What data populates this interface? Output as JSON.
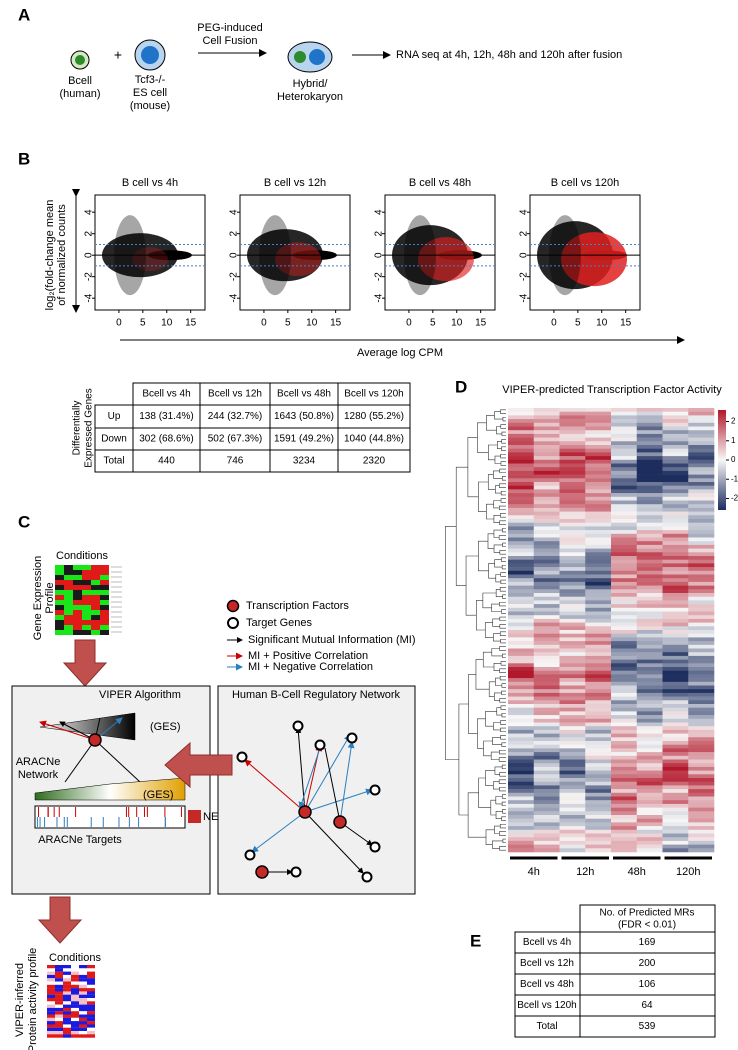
{
  "panel_a": {
    "label": "A",
    "bcell": [
      "Bcell",
      "(human)"
    ],
    "plus": "+",
    "es_cell": [
      "Tcf3-/-",
      "ES cell",
      "(mouse)"
    ],
    "fusion": [
      "PEG-induced",
      "Cell Fusion"
    ],
    "hybrid": [
      "Hybrid/",
      "Heterokaryon"
    ],
    "rna_seq": "RNA seq at 4h, 12h, 48h and 120h after fusion"
  },
  "panel_b": {
    "label": "B",
    "plots": [
      {
        "title": "B cell vs 4h"
      },
      {
        "title": "B cell vs 12h"
      },
      {
        "title": "B cell vs 48h"
      },
      {
        "title": "B cell vs 120h"
      }
    ],
    "ylim": [
      -5.1,
      5.6
    ],
    "yticks": [
      4,
      2,
      0,
      -2,
      -4
    ],
    "xlim": [
      -5,
      18
    ],
    "xticks": [
      0,
      5,
      10,
      15
    ],
    "solid_hline": 0,
    "dashed_hlines": [
      1,
      -1
    ],
    "y_label": [
      "log₂(fold-change mean",
      "of normalized counts"
    ],
    "x_label": "Average log CPM",
    "table": {
      "side_label": [
        "Differentially",
        "Expressed Genes"
      ],
      "columns": [
        "Bcell vs 4h",
        "Bcell vs 12h",
        "Bcell vs 48h",
        "Bcell vs 120h"
      ],
      "rows": [
        {
          "label": "Up",
          "cells": [
            "138 (31.4%)",
            "244 (32.7%)",
            "1643 (50.8%)",
            "1280 (55.2%)"
          ]
        },
        {
          "label": "Down",
          "cells": [
            "302 (68.6%)",
            "502 (67.3%)",
            "1591 (49.2%)",
            "1040 (44.8%)"
          ]
        },
        {
          "label": "Total",
          "cells": [
            "440",
            "746",
            "3234",
            "2320"
          ]
        }
      ]
    }
  },
  "panel_c": {
    "label": "C",
    "conditions_top": "Conditions",
    "gep_label": [
      "Gene Expression",
      "Profile"
    ],
    "legend": {
      "tf": "Transcription Factors",
      "target": "Target Genes",
      "mi": "Significant Mutual Information (MI)",
      "pos": "MI + Positive Correlation",
      "neg": "MI + Negative Correlation"
    },
    "viper_box": {
      "title": "VIPER Algorithm",
      "ges_top": "(GES)",
      "network": [
        "ARACNe",
        "Network"
      ],
      "ges_bottom": "(GES)",
      "nes": "NES",
      "targets": "ARACNe Targets"
    },
    "network_box": {
      "title": "Human B-Cell Regulatory Network"
    },
    "conditions_bottom": "Conditions",
    "pap_label": [
      "VIPER-inferred",
      "Protein activity profile"
    ]
  },
  "panel_d": {
    "label": "D",
    "title": "VIPER-predicted Transcription Factor Activity",
    "groups": [
      "4h",
      "12h",
      "48h",
      "120h"
    ],
    "colorbar": {
      "lim": [
        -2.6,
        2.6
      ],
      "ticks": [
        2,
        1,
        0,
        -1,
        -2
      ]
    }
  },
  "panel_e": {
    "label": "E",
    "header": [
      "No. of Predicted MRs",
      "(FDR < 0.01)"
    ],
    "rows": [
      [
        "Bcell vs 4h",
        "169"
      ],
      [
        "Bcell vs 12h",
        "200"
      ],
      [
        "Bcell vs 48h",
        "106"
      ],
      [
        "Bcell vs 120h",
        "64"
      ],
      [
        "Total",
        "539"
      ]
    ]
  }
}
